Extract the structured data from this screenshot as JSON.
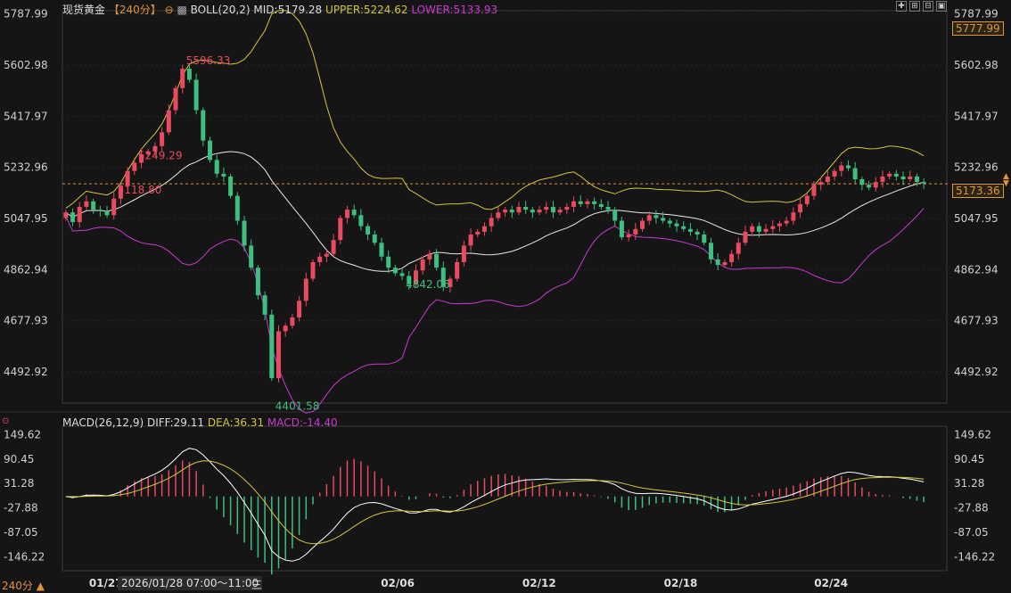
{
  "header": {
    "symbol": "现货黄金",
    "period_tag": "【240分】",
    "boll_label": "BOLL(20,2)",
    "mid_label": "MID:5179.28",
    "upper_label": "UPPER:5224.62",
    "lower_label": "LOWER:5133.93"
  },
  "macd_header": {
    "name": "MACD(26,12,9)",
    "diff": "DIFF:29.11",
    "dea": "DEA:36.31",
    "macd": "MACD:-14.40"
  },
  "price_axis": {
    "left_labels": [
      "5787.99",
      "5602.98",
      "5417.97",
      "5232.96",
      "5047.95",
      "4862.94",
      "4677.93",
      "4492.92"
    ],
    "right_labels": [
      "5787.99",
      "5602.98",
      "5417.97",
      "5232.96",
      "5047.95",
      "4862.94",
      "4677.93",
      "4492.92"
    ],
    "top_box": "5777.99",
    "current_price": "5173.36"
  },
  "macd_axis": {
    "labels": [
      "149.62",
      "90.45",
      "31.28",
      "-27.88",
      "-87.05",
      "-146.22"
    ]
  },
  "bottom_bar": {
    "period_button": "240分 ▲",
    "date_ticks": [
      "01/27",
      "02/06",
      "02/12",
      "02/18",
      "02/24"
    ],
    "cursor_range": "2026/01/28 07:00～11:00",
    "menu_glyph": "三"
  },
  "annotations": {
    "high1": "5596.33",
    "low1": "4401.58",
    "high2": "5118.80",
    "low2": "4842.06",
    "high3": "5249.29"
  },
  "colors": {
    "up": "#e84a5f",
    "down": "#3fbf7f",
    "mid": "#e8e8e8",
    "upper": "#d4c53a",
    "lower": "#c93ad1",
    "diff": "#ffffff",
    "dea": "#d4c53a",
    "price_line": "#e0943a"
  },
  "chart_data": {
    "type": "candlestick",
    "indicator_overlay": "BOLL(20,2)",
    "price_ylim": [
      4380,
      5800
    ],
    "macd_ylim": [
      -180,
      170
    ],
    "closes": [
      5070,
      5035,
      5090,
      5110,
      5080,
      5075,
      5060,
      5120,
      5165,
      5220,
      5250,
      5280,
      5290,
      5310,
      5360,
      5440,
      5520,
      5590,
      5550,
      5440,
      5330,
      5260,
      5210,
      5200,
      5130,
      5040,
      4950,
      4870,
      4770,
      4700,
      4470,
      4640,
      4660,
      4690,
      4750,
      4830,
      4890,
      4910,
      4920,
      4970,
      5050,
      5080,
      5060,
      5020,
      4990,
      4960,
      4910,
      4870,
      4850,
      4840,
      4810,
      4860,
      4900,
      4920,
      4870,
      4800,
      4830,
      4890,
      4950,
      4990,
      5000,
      5020,
      5050,
      5070,
      5080,
      5070,
      5090,
      5080,
      5070,
      5080,
      5090,
      5070,
      5080,
      5090,
      5110,
      5100,
      5110,
      5100,
      5090,
      5080,
      5040,
      4980,
      4990,
      5010,
      5040,
      5060,
      5050,
      5040,
      5030,
      5020,
      5010,
      5000,
      4990,
      4960,
      4900,
      4880,
      4890,
      4920,
      4960,
      5000,
      5020,
      5000,
      5010,
      5020,
      5030,
      5040,
      5070,
      5100,
      5130,
      5170,
      5180,
      5200,
      5220,
      5240,
      5230,
      5190,
      5170,
      5160,
      5180,
      5200,
      5210,
      5200,
      5190,
      5200,
      5180,
      5175
    ]
  }
}
